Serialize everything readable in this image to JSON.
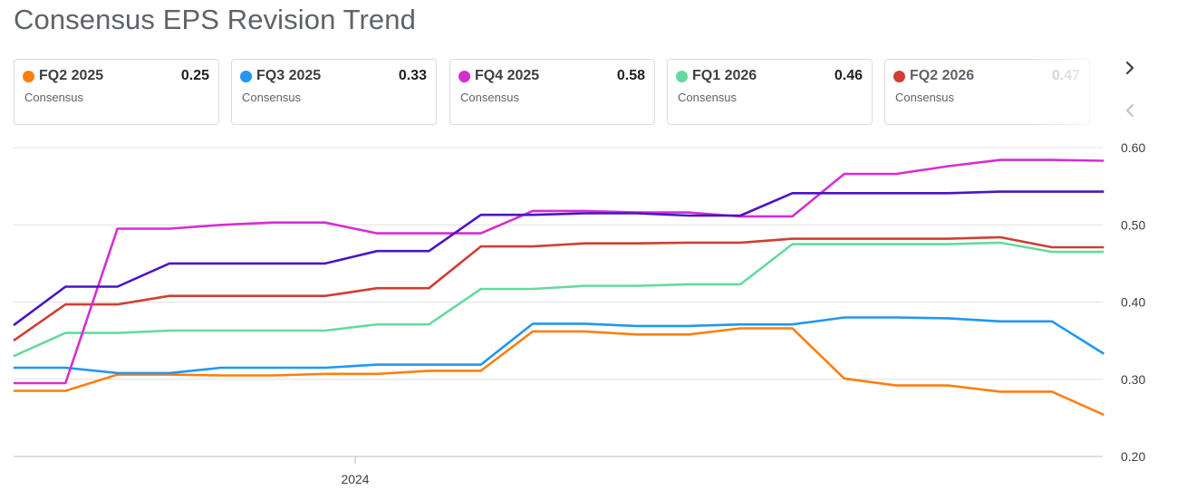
{
  "title": "Consensus EPS Revision Trend",
  "cards": [
    {
      "name": "FQ2 2025",
      "value": "0.25",
      "sub": "Consensus",
      "color": "#ff7f0e"
    },
    {
      "name": "FQ3 2025",
      "value": "0.33",
      "sub": "Consensus",
      "color": "#2196f3"
    },
    {
      "name": "FQ4 2025",
      "value": "0.58",
      "sub": "Consensus",
      "color": "#d42fd2"
    },
    {
      "name": "FQ1 2026",
      "value": "0.46",
      "sub": "Consensus",
      "color": "#66d9a0"
    },
    {
      "name": "FQ2 2026",
      "value": "0.47",
      "sub": "Consensus",
      "color": "#d03d33"
    }
  ],
  "nav": {
    "next_icon": "chevron-right-icon",
    "prev_icon": "chevron-left-icon"
  },
  "chart_data": {
    "type": "line",
    "title": "Consensus EPS Revision Trend",
    "xlabel": "",
    "ylabel": "",
    "ylim": [
      0.2,
      0.6
    ],
    "y_ticks": [
      "0.60",
      "0.50",
      "0.40",
      "0.30",
      "0.20"
    ],
    "x_ticks": [
      {
        "label": "2024",
        "at": 6.58
      }
    ],
    "grid": true,
    "x": [
      0,
      1,
      2,
      3,
      4,
      5,
      6,
      7,
      8,
      9,
      10,
      11,
      12,
      13,
      14,
      15,
      16,
      17,
      18,
      19,
      20,
      21
    ],
    "series": [
      {
        "name": "FQ2 2025",
        "color": "#ff7f0e",
        "values": [
          0.285,
          0.285,
          0.306,
          0.306,
          0.305,
          0.305,
          0.307,
          0.307,
          0.311,
          0.311,
          0.362,
          0.362,
          0.358,
          0.358,
          0.366,
          0.366,
          0.301,
          0.292,
          0.292,
          0.284,
          0.284,
          0.254
        ]
      },
      {
        "name": "FQ3 2025",
        "color": "#2196f3",
        "values": [
          0.315,
          0.315,
          0.308,
          0.308,
          0.315,
          0.315,
          0.315,
          0.319,
          0.319,
          0.319,
          0.372,
          0.372,
          0.369,
          0.369,
          0.371,
          0.371,
          0.38,
          0.38,
          0.379,
          0.375,
          0.375,
          0.333
        ]
      },
      {
        "name": "FQ4 2025",
        "color": "#d42fd2",
        "values": [
          0.295,
          0.295,
          0.495,
          0.495,
          0.5,
          0.503,
          0.503,
          0.489,
          0.489,
          0.489,
          0.518,
          0.518,
          0.516,
          0.516,
          0.511,
          0.511,
          0.566,
          0.566,
          0.576,
          0.584,
          0.584,
          0.583
        ]
      },
      {
        "name": "FQ1 2026",
        "color": "#66d9a0",
        "values": [
          0.33,
          0.36,
          0.36,
          0.363,
          0.363,
          0.363,
          0.363,
          0.371,
          0.371,
          0.417,
          0.417,
          0.421,
          0.421,
          0.423,
          0.423,
          0.475,
          0.475,
          0.475,
          0.475,
          0.477,
          0.465,
          0.465
        ]
      },
      {
        "name": "FQ2 2026",
        "color": "#d03d33",
        "values": [
          0.35,
          0.397,
          0.397,
          0.408,
          0.408,
          0.408,
          0.408,
          0.418,
          0.418,
          0.472,
          0.472,
          0.476,
          0.476,
          0.477,
          0.477,
          0.482,
          0.482,
          0.482,
          0.482,
          0.484,
          0.471,
          0.471
        ]
      },
      {
        "name": "",
        "color": "#4a14c8",
        "values": [
          0.37,
          0.42,
          0.42,
          0.45,
          0.45,
          0.45,
          0.45,
          0.466,
          0.466,
          0.513,
          0.513,
          0.515,
          0.515,
          0.512,
          0.512,
          0.541,
          0.541,
          0.541,
          0.541,
          0.543,
          0.543,
          0.543
        ]
      }
    ]
  }
}
